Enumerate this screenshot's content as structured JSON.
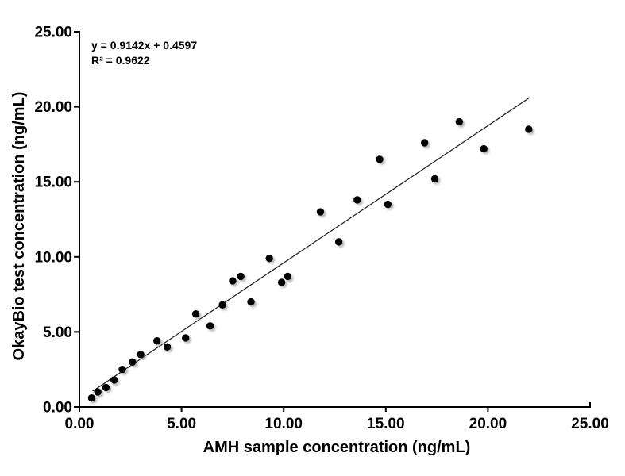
{
  "chart_data": {
    "type": "scatter",
    "title": "",
    "xlabel": "AMH sample concentration (ng/mL)",
    "ylabel": "OkayBio test concentration (ng/mL)",
    "xlim": [
      0,
      25
    ],
    "ylim": [
      0,
      25
    ],
    "x_ticks": [
      0,
      5,
      10,
      15,
      20,
      25
    ],
    "y_ticks": [
      0,
      5,
      10,
      15,
      20,
      25
    ],
    "tick_decimals": 2,
    "grid": false,
    "legend": "none",
    "annotations": {
      "equation": "y = 0.9142x + 0.4597",
      "r_squared": "R² = 0.9622"
    },
    "points": [
      [
        0.6,
        0.6
      ],
      [
        0.9,
        1.0
      ],
      [
        1.3,
        1.3
      ],
      [
        1.7,
        1.8
      ],
      [
        2.1,
        2.5
      ],
      [
        2.6,
        3.0
      ],
      [
        3.0,
        3.5
      ],
      [
        3.8,
        4.4
      ],
      [
        4.3,
        4.0
      ],
      [
        5.2,
        4.6
      ],
      [
        5.7,
        6.2
      ],
      [
        6.4,
        5.4
      ],
      [
        7.0,
        6.8
      ],
      [
        7.5,
        8.4
      ],
      [
        7.9,
        8.7
      ],
      [
        8.4,
        7.0
      ],
      [
        9.3,
        9.9
      ],
      [
        9.9,
        8.3
      ],
      [
        10.2,
        8.7
      ],
      [
        11.8,
        13.0
      ],
      [
        12.7,
        11.0
      ],
      [
        13.6,
        13.8
      ],
      [
        14.7,
        16.5
      ],
      [
        15.1,
        13.5
      ],
      [
        16.9,
        17.6
      ],
      [
        17.4,
        15.2
      ],
      [
        18.6,
        19.0
      ],
      [
        19.8,
        17.2
      ],
      [
        22.0,
        18.5
      ]
    ],
    "trendline": {
      "slope": 0.9142,
      "intercept": 0.4597,
      "x_start": 0.65,
      "x_end": 22.05
    },
    "colors": {
      "marker": "#000000",
      "trendline": "#1a1a1a",
      "axis": "#000000",
      "text": "#000000",
      "background": "#ffffff"
    }
  }
}
